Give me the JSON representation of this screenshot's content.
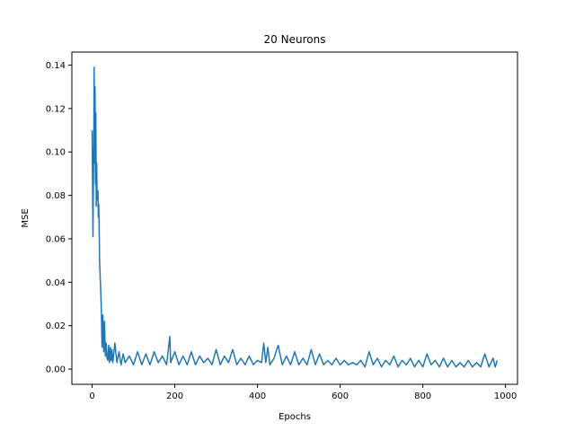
{
  "chart_data": {
    "type": "line",
    "title": "20 Neurons",
    "xlabel": "Epochs",
    "ylabel": "MSE",
    "xlim": [
      -49,
      1029
    ],
    "ylim": [
      -0.007,
      0.146
    ],
    "x_ticks": [
      0,
      200,
      400,
      600,
      800,
      1000
    ],
    "x_tick_labels": [
      "0",
      "200",
      "400",
      "600",
      "800",
      "1000"
    ],
    "y_ticks": [
      0.0,
      0.02,
      0.04,
      0.06,
      0.08,
      0.1,
      0.12,
      0.14
    ],
    "y_tick_labels": [
      "0.00",
      "0.02",
      "0.04",
      "0.06",
      "0.08",
      "0.10",
      "0.12",
      "0.14"
    ],
    "grid": false,
    "series": [
      {
        "color": "#1f77b4",
        "x": [
          0,
          2,
          3,
          4,
          5,
          6,
          7,
          8,
          9,
          10,
          11,
          12,
          13,
          14,
          15,
          16,
          17,
          18,
          19,
          20,
          22,
          24,
          26,
          28,
          30,
          32,
          34,
          36,
          38,
          40,
          42,
          44,
          46,
          48,
          50,
          55,
          60,
          65,
          70,
          75,
          80,
          90,
          100,
          110,
          120,
          130,
          140,
          150,
          160,
          170,
          180,
          188,
          190,
          200,
          210,
          220,
          230,
          240,
          250,
          260,
          270,
          280,
          290,
          300,
          310,
          320,
          330,
          340,
          350,
          360,
          370,
          380,
          390,
          400,
          410,
          415,
          420,
          425,
          430,
          440,
          450,
          460,
          470,
          480,
          490,
          500,
          510,
          520,
          530,
          540,
          550,
          560,
          570,
          580,
          590,
          600,
          610,
          620,
          630,
          640,
          650,
          660,
          670,
          680,
          690,
          700,
          710,
          720,
          730,
          740,
          750,
          760,
          770,
          780,
          790,
          800,
          810,
          820,
          830,
          840,
          850,
          860,
          870,
          880,
          890,
          900,
          910,
          920,
          930,
          940,
          950,
          960,
          970,
          975,
          980
        ],
        "y": [
          0.11,
          0.061,
          0.085,
          0.105,
          0.139,
          0.095,
          0.13,
          0.085,
          0.118,
          0.075,
          0.095,
          0.08,
          0.078,
          0.082,
          0.07,
          0.076,
          0.065,
          0.05,
          0.045,
          0.04,
          0.03,
          0.01,
          0.025,
          0.008,
          0.022,
          0.006,
          0.012,
          0.005,
          0.004,
          0.011,
          0.003,
          0.01,
          0.004,
          0.009,
          0.003,
          0.012,
          0.003,
          0.008,
          0.002,
          0.007,
          0.003,
          0.006,
          0.002,
          0.008,
          0.002,
          0.007,
          0.002,
          0.008,
          0.003,
          0.006,
          0.002,
          0.015,
          0.003,
          0.008,
          0.002,
          0.006,
          0.002,
          0.008,
          0.002,
          0.006,
          0.003,
          0.005,
          0.002,
          0.009,
          0.002,
          0.006,
          0.003,
          0.009,
          0.002,
          0.005,
          0.002,
          0.006,
          0.002,
          0.004,
          0.003,
          0.012,
          0.003,
          0.01,
          0.002,
          0.005,
          0.011,
          0.002,
          0.006,
          0.002,
          0.008,
          0.002,
          0.005,
          0.002,
          0.009,
          0.002,
          0.007,
          0.002,
          0.004,
          0.002,
          0.005,
          0.002,
          0.004,
          0.002,
          0.003,
          0.002,
          0.004,
          0.001,
          0.008,
          0.002,
          0.005,
          0.001,
          0.004,
          0.002,
          0.006,
          0.001,
          0.004,
          0.002,
          0.005,
          0.001,
          0.004,
          0.001,
          0.007,
          0.002,
          0.004,
          0.001,
          0.005,
          0.001,
          0.004,
          0.001,
          0.003,
          0.001,
          0.004,
          0.001,
          0.003,
          0.001,
          0.007,
          0.001,
          0.005,
          0.001,
          0.004
        ]
      }
    ]
  }
}
